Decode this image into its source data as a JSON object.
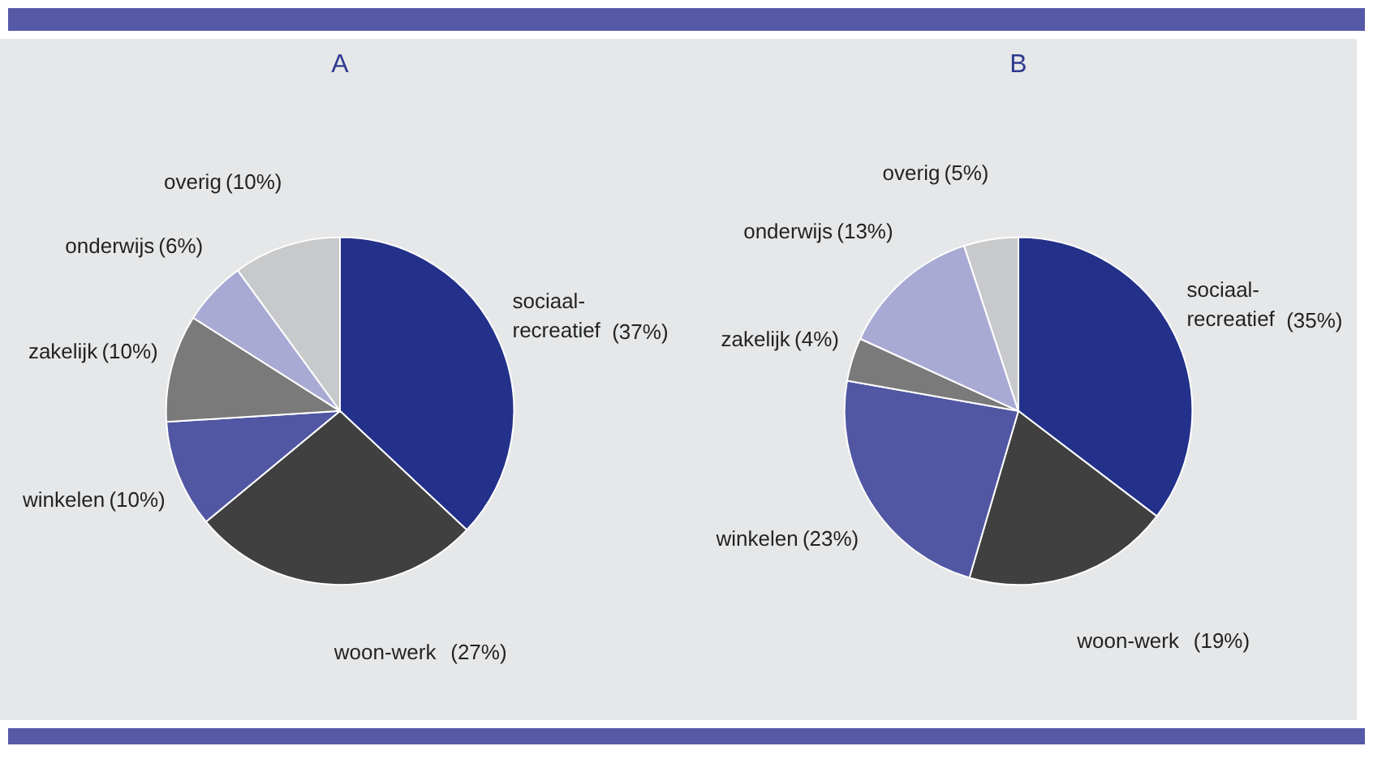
{
  "chart_data": [
    {
      "type": "pie",
      "title": "A",
      "categories": [
        "sociaal-recreatief",
        "woon-werk",
        "winkelen",
        "zakelijk",
        "onderwijs",
        "overig"
      ],
      "values": [
        37,
        27,
        10,
        10,
        6,
        10
      ],
      "colors": [
        "#23318a",
        "#404040",
        "#5157a3",
        "#7a7a7a",
        "#a9aad4",
        "#c8c9cb"
      ],
      "value_labels": [
        "(37%)",
        "(27%)",
        "(10%)",
        "(10%)",
        "(6%)",
        "(10%)"
      ]
    },
    {
      "type": "pie",
      "title": "B",
      "categories": [
        "sociaal-recreatief",
        "woon-werk",
        "winkelen",
        "zakelijk",
        "onderwijs",
        "overig"
      ],
      "values": [
        35,
        19,
        23,
        4,
        13,
        5
      ],
      "colors": [
        "#23318a",
        "#404040",
        "#5157a3",
        "#7a7a7a",
        "#a9aad4",
        "#c8c9cb"
      ],
      "value_labels": [
        "(35%)",
        "(19%)",
        "(23%)",
        "(4%)",
        "(13%)",
        "(5%)"
      ]
    }
  ]
}
